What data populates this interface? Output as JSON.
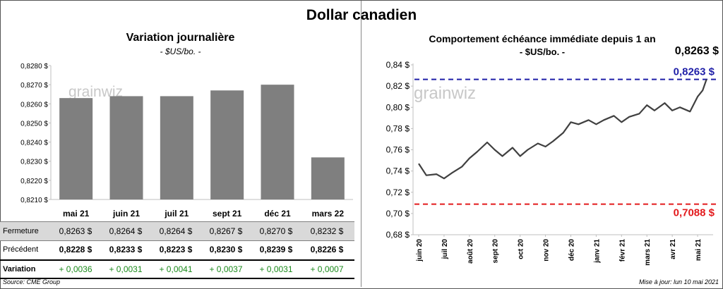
{
  "title": "Dollar canadien",
  "left": {
    "title": "Variation  journalière",
    "subtitle": "- $US/bo. -",
    "watermark": "grainwiz"
  },
  "right": {
    "title": "Comportement échéance immédiate depuis 1 an",
    "subtitle": "- $US/bo. -",
    "last_value": "0,8263 $",
    "line_high_label": "0,8263 $",
    "line_low_label": "0,7088 $",
    "watermark": "grainwiz"
  },
  "table": {
    "row_labels": {
      "close": "Fermeture",
      "prev": "Précédent",
      "var": "Variation"
    },
    "close": [
      "0,8263 $",
      "0,8264 $",
      "0,8264 $",
      "0,8267 $",
      "0,8270 $",
      "0,8232 $"
    ],
    "prev": [
      "0,8228 $",
      "0,8233 $",
      "0,8223 $",
      "0,8230 $",
      "0,8239 $",
      "0,8226 $"
    ],
    "var": [
      "+ 0,0036",
      "+ 0,0031",
      "+ 0,0041",
      "+ 0,0037",
      "+ 0,0031",
      "+ 0,0007"
    ]
  },
  "source": "Source: CME Group",
  "updated": "Mise à jour: lun 10 mai 2021",
  "colors": {
    "bar": "#7f7f7f",
    "line": "#404040",
    "high_line": "#1f1fa8",
    "low_line": "#e31a1c",
    "positive": "#1b8a1b"
  },
  "chart_data": [
    {
      "type": "bar",
      "title": "Variation  journalière",
      "subtitle": "- $US/bo. -",
      "categories": [
        "mai 21",
        "juin 21",
        "juil 21",
        "sept 21",
        "déc 21",
        "mars 22"
      ],
      "values": [
        0.8263,
        0.8264,
        0.8264,
        0.8267,
        0.827,
        0.8232
      ],
      "ylim": [
        0.821,
        0.828
      ],
      "yticks": [
        "0,8210 $",
        "0,8220 $",
        "0,8230 $",
        "0,8240 $",
        "0,8250 $",
        "0,8260 $",
        "0,8270 $",
        "0,8280 $"
      ],
      "grid": false
    },
    {
      "type": "line",
      "title": "Comportement échéance immédiate depuis 1 an",
      "subtitle": "- $US/bo. -",
      "xticks": [
        "juin 20",
        "juil 20",
        "août 20",
        "sept 20",
        "oct 20",
        "nov 20",
        "déc 20",
        "janv 21",
        "févr 21",
        "mars 21",
        "avr 21",
        "mai 21"
      ],
      "yticks": [
        "0,68 $",
        "0,70 $",
        "0,72 $",
        "0,74 $",
        "0,76 $",
        "0,78 $",
        "0,80 $",
        "0,82 $",
        "0,84 $"
      ],
      "ylim": [
        0.68,
        0.84
      ],
      "hlines": [
        {
          "value": 0.8263,
          "label": "0,8263 $",
          "color": "#1f1fa8"
        },
        {
          "value": 0.7088,
          "label": "0,7088 $",
          "color": "#e31a1c"
        }
      ],
      "x": [
        0,
        0.3,
        0.7,
        1.0,
        1.3,
        1.7,
        2.0,
        2.3,
        2.7,
        3.0,
        3.3,
        3.7,
        4.0,
        4.3,
        4.7,
        5.0,
        5.3,
        5.7,
        6.0,
        6.3,
        6.7,
        7.0,
        7.3,
        7.7,
        8.0,
        8.3,
        8.7,
        9.0,
        9.3,
        9.7,
        10.0,
        10.3,
        10.7,
        11.0,
        11.2,
        11.35
      ],
      "values": [
        0.747,
        0.736,
        0.737,
        0.733,
        0.738,
        0.744,
        0.752,
        0.758,
        0.767,
        0.76,
        0.754,
        0.762,
        0.754,
        0.76,
        0.766,
        0.763,
        0.768,
        0.776,
        0.786,
        0.784,
        0.788,
        0.784,
        0.788,
        0.792,
        0.786,
        0.791,
        0.794,
        0.802,
        0.797,
        0.804,
        0.797,
        0.8,
        0.796,
        0.81,
        0.816,
        0.8263
      ]
    }
  ]
}
